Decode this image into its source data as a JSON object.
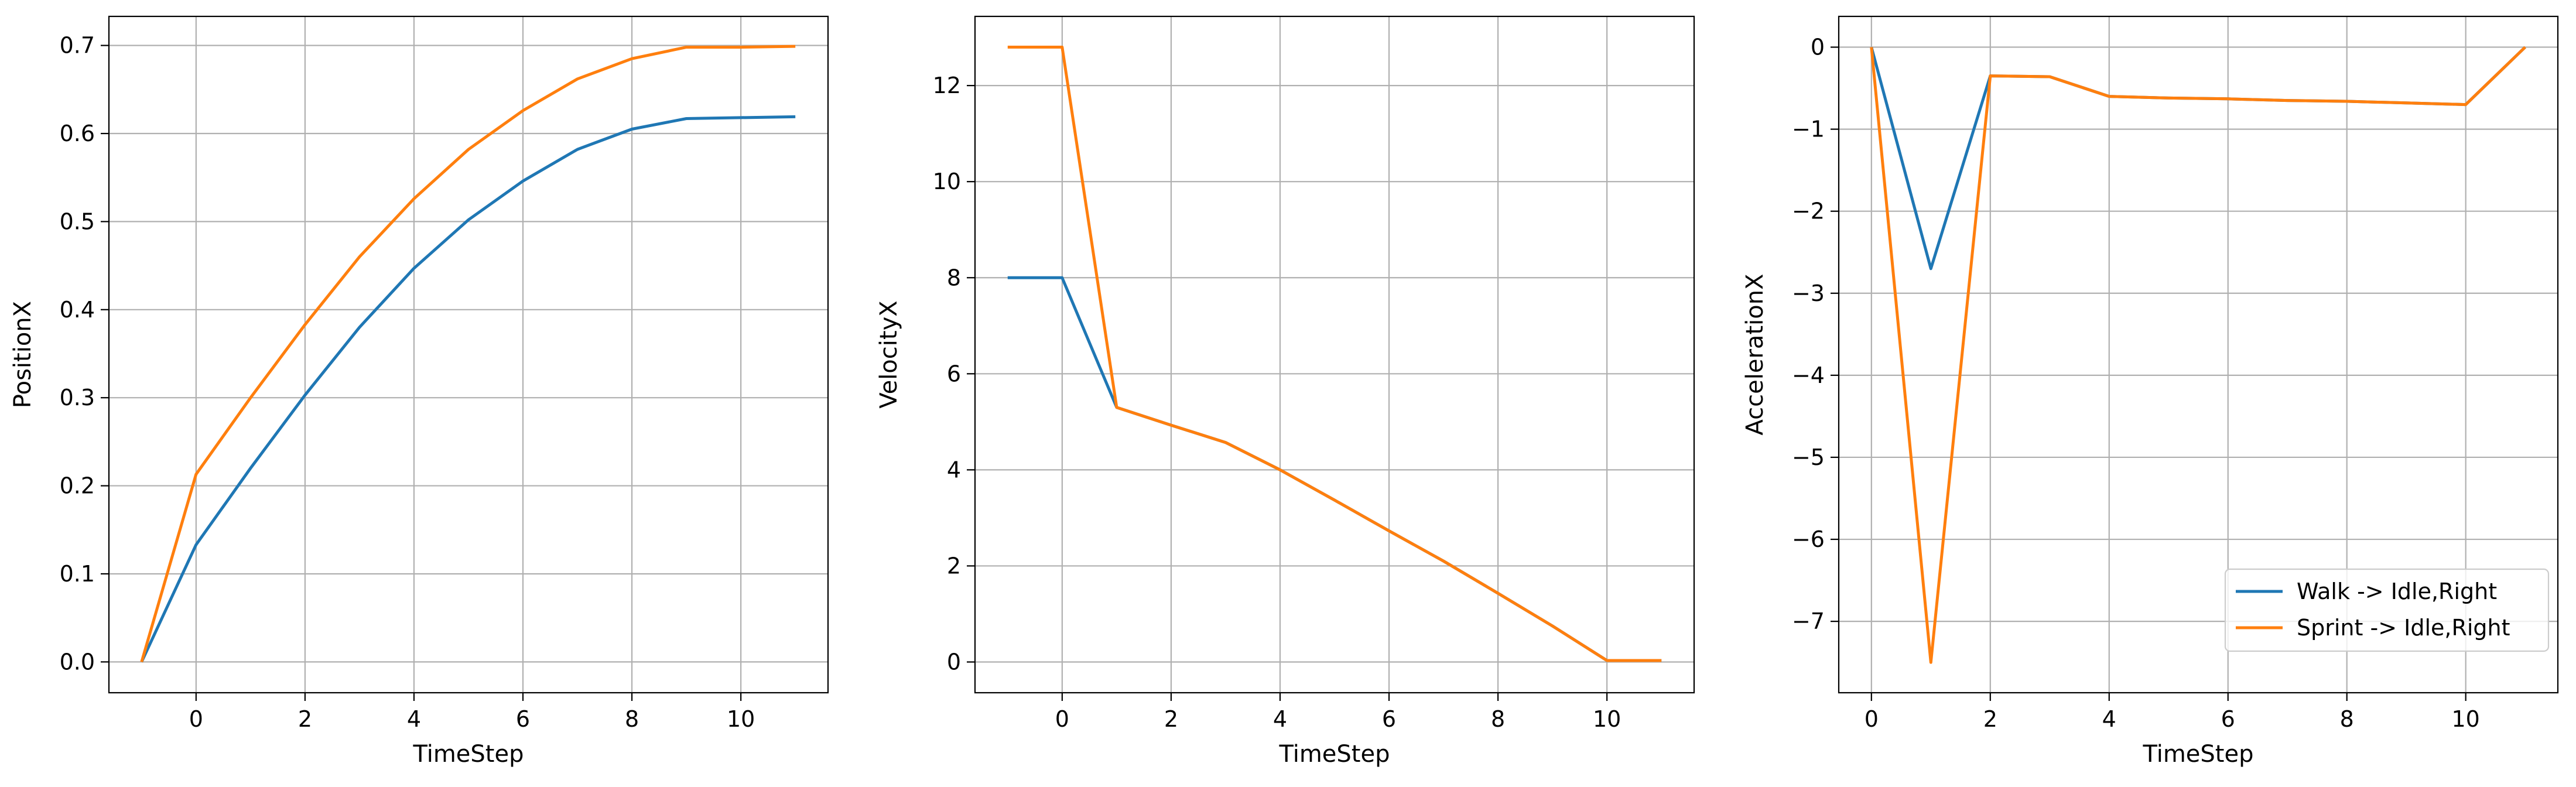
{
  "chart_data": [
    {
      "type": "line",
      "xlabel": "TimeStep",
      "ylabel": "PositionX",
      "xlim": [
        -1.6,
        11.6
      ],
      "ylim": [
        -0.035,
        0.733
      ],
      "xticks": [
        0,
        2,
        4,
        6,
        8,
        10
      ],
      "yticks": [
        0.0,
        0.1,
        0.2,
        0.3,
        0.4,
        0.5,
        0.6,
        0.7
      ],
      "ytick_labels": [
        "0.0",
        "0.1",
        "0.2",
        "0.3",
        "0.4",
        "0.5",
        "0.6",
        "0.7"
      ],
      "grid": true,
      "series": [
        {
          "name": "Walk -> Idle,Right",
          "color": "#1f77b4",
          "x": [
            -1,
            0,
            1,
            2,
            3,
            4,
            5,
            6,
            7,
            8,
            9,
            10,
            11
          ],
          "y": [
            0.0,
            0.133,
            0.22,
            0.303,
            0.38,
            0.447,
            0.502,
            0.546,
            0.582,
            0.605,
            0.617,
            0.618,
            0.619
          ]
        },
        {
          "name": "Sprint -> Idle,Right",
          "color": "#ff7f0e",
          "x": [
            -1,
            0,
            1,
            2,
            3,
            4,
            5,
            6,
            7,
            8,
            9,
            10,
            11
          ],
          "y": [
            0.0,
            0.213,
            0.3,
            0.383,
            0.46,
            0.526,
            0.582,
            0.626,
            0.662,
            0.685,
            0.698,
            0.698,
            0.699
          ]
        }
      ]
    },
    {
      "type": "line",
      "xlabel": "TimeStep",
      "ylabel": "VelocityX",
      "xlim": [
        -1.6,
        11.6
      ],
      "ylim": [
        -0.64,
        13.44
      ],
      "xticks": [
        0,
        2,
        4,
        6,
        8,
        10
      ],
      "yticks": [
        0,
        2,
        4,
        6,
        8,
        10,
        12
      ],
      "ytick_labels": [
        "0",
        "2",
        "4",
        "6",
        "8",
        "10",
        "12"
      ],
      "grid": true,
      "series": [
        {
          "name": "Walk -> Idle,Right",
          "color": "#1f77b4",
          "x": [
            -1,
            0,
            1,
            2,
            3,
            4,
            5,
            6,
            7,
            8,
            9,
            10,
            11
          ],
          "y": [
            8.0,
            8.0,
            5.3,
            4.93,
            4.57,
            4.0,
            3.37,
            2.73,
            2.1,
            1.43,
            0.75,
            0.03,
            0.03
          ]
        },
        {
          "name": "Sprint -> Idle,Right",
          "color": "#ff7f0e",
          "x": [
            -1,
            0,
            1,
            2,
            3,
            4,
            5,
            6,
            7,
            8,
            9,
            10,
            11
          ],
          "y": [
            12.8,
            12.8,
            5.3,
            4.93,
            4.57,
            4.0,
            3.37,
            2.73,
            2.1,
            1.43,
            0.75,
            0.03,
            0.03
          ]
        }
      ]
    },
    {
      "type": "line",
      "xlabel": "TimeStep",
      "ylabel": "AccelerationX",
      "xlim": [
        -0.55,
        11.55
      ],
      "ylim": [
        -7.87,
        0.375
      ],
      "xticks": [
        0,
        2,
        4,
        6,
        8,
        10
      ],
      "yticks": [
        0,
        -1,
        -2,
        -3,
        -4,
        -5,
        -6,
        -7
      ],
      "ytick_labels": [
        "0",
        "−1",
        "−2",
        "−3",
        "−4",
        "−5",
        "−6",
        "−7"
      ],
      "grid": true,
      "legend": {
        "position": "lower-right",
        "entries": [
          "Walk -> Idle,Right",
          "Sprint -> Idle,Right"
        ]
      },
      "series": [
        {
          "name": "Walk -> Idle,Right",
          "color": "#1f77b4",
          "x": [
            0,
            1,
            2,
            3,
            4,
            5,
            6,
            7,
            8,
            9,
            10,
            11
          ],
          "y": [
            0.0,
            -2.7,
            -0.35,
            -0.36,
            -0.6,
            -0.62,
            -0.63,
            -0.65,
            -0.66,
            -0.68,
            -0.7,
            0.0
          ]
        },
        {
          "name": "Sprint -> Idle,Right",
          "color": "#ff7f0e",
          "x": [
            0,
            1,
            2,
            3,
            4,
            5,
            6,
            7,
            8,
            9,
            10,
            11
          ],
          "y": [
            0.0,
            -7.5,
            -0.35,
            -0.36,
            -0.6,
            -0.62,
            -0.63,
            -0.65,
            -0.66,
            -0.68,
            -0.7,
            0.0
          ]
        }
      ]
    }
  ]
}
